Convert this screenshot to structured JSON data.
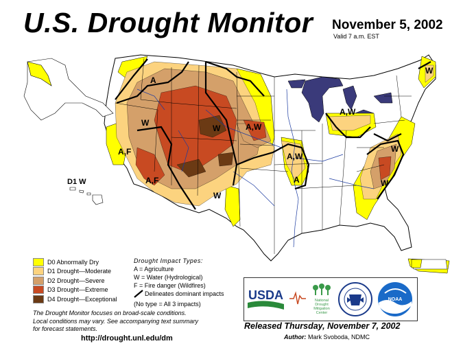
{
  "header": {
    "title": "U.S. Drought Monitor",
    "date": "November 5, 2002",
    "valid": "Valid 7 a.m. EST"
  },
  "map_labels": {
    "a_nw": "A",
    "w_nevada": "W",
    "w_rockies": "W",
    "aw_plains": "A,W",
    "af_california": "A,F",
    "af_southwest": "A,F",
    "aw_missouri": "A,W",
    "a_ozarks": "A",
    "w_texas": "W",
    "aw_great_lakes": "A,W",
    "w_maine": "W",
    "w_midatlantic": "W",
    "w_southeast": "W",
    "hawaii": "D1 W"
  },
  "legend": {
    "items": [
      {
        "label": "D0 Abnormally Dry",
        "color": "#ffff00"
      },
      {
        "label": "D1 Drought—Moderate",
        "color": "#fcd37f"
      },
      {
        "label": "D2 Drought—Severe",
        "color": "#d4a06a"
      },
      {
        "label": "D3 Drought—Extreme",
        "color": "#c84a22"
      },
      {
        "label": "D4 Drought—Exceptional",
        "color": "#6b3a14"
      }
    ]
  },
  "impacts": {
    "heading": "Drought Impact Types:",
    "a": "A = Agriculture",
    "w": "W = Water (Hydrological)",
    "f": "F = Fire danger (Wildfires)",
    "delineates": "Delineates dominant impacts",
    "none": "(No type = All 3 impacts)"
  },
  "note": {
    "line1": "The Drought Monitor focuses on broad-scale conditions.",
    "line2": "Local conditions may vary. See accompanying text summary",
    "line3": "for forecast statements."
  },
  "url": "http://drought.unl.edu/dm",
  "logos": {
    "usda": "USDA",
    "ndmc_line1": "National",
    "ndmc_line2": "Drought",
    "ndmc_line3": "Mitigation",
    "ndmc_line4": "Center",
    "noaa": "NOAA"
  },
  "footer": {
    "released": "Released Thursday, November 7, 2002",
    "author_label": "Author:",
    "author_name": "Mark Svoboda, NDMC"
  },
  "colors": {
    "d0": "#ffff00",
    "d1": "#fcd37f",
    "d2": "#d4a06a",
    "d3": "#c84a22",
    "d4": "#6b3a14",
    "lakes": "#3a3a7a",
    "water": "#1a3aa0"
  }
}
